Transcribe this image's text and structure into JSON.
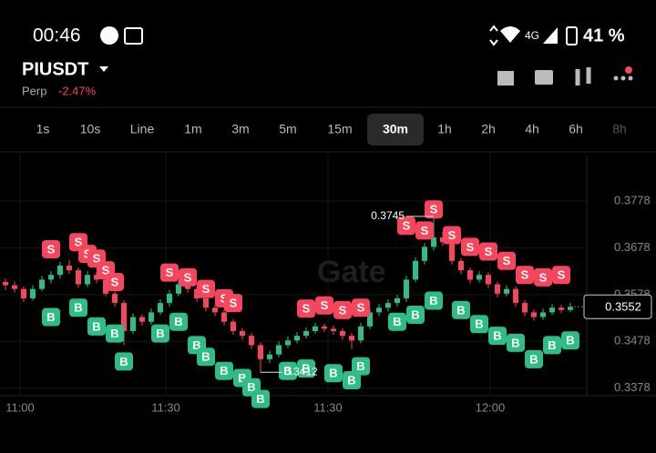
{
  "status_bar": {
    "time": "00:46",
    "network": "4G",
    "battery": "41 %"
  },
  "header": {
    "symbol": "PIUSDT",
    "product": "Perp",
    "change": "-2.47%"
  },
  "tabs": {
    "items": [
      "1s",
      "10s",
      "Line",
      "1m",
      "3m",
      "5m",
      "15m",
      "30m",
      "1h",
      "2h",
      "4h",
      "6h",
      "8h"
    ],
    "selected_index": 7
  },
  "watermark": "Gate",
  "chart_data": {
    "type": "candlestick",
    "xlim": [
      -0.6,
      63.8
    ],
    "ylim": [
      0.3362,
      0.3877
    ],
    "yticks": [
      0.3778,
      0.3678,
      0.3578,
      0.3478,
      0.3378
    ],
    "xticks": [
      {
        "value": 1.6,
        "label": "11:00"
      },
      {
        "value": 17.6,
        "label": "11:30"
      },
      {
        "value": 35.4,
        "label": "11:30"
      },
      {
        "value": 53.2,
        "label": "12:00"
      }
    ],
    "up_color": "#2ebd85",
    "down_color": "#f6465d",
    "candles": [
      [
        0.3605,
        0.3612,
        0.3588,
        0.3598
      ],
      [
        0.3598,
        0.3606,
        0.3582,
        0.359
      ],
      [
        0.359,
        0.3596,
        0.3562,
        0.357
      ],
      [
        0.357,
        0.3598,
        0.3565,
        0.359
      ],
      [
        0.359,
        0.3618,
        0.3585,
        0.361
      ],
      [
        0.361,
        0.3628,
        0.3602,
        0.362
      ],
      [
        0.362,
        0.3648,
        0.3612,
        0.364
      ],
      [
        0.364,
        0.3652,
        0.3622,
        0.363
      ],
      [
        0.363,
        0.3636,
        0.3592,
        0.36
      ],
      [
        0.36,
        0.3628,
        0.3594,
        0.362
      ],
      [
        0.362,
        0.3626,
        0.3602,
        0.361
      ],
      [
        0.361,
        0.3616,
        0.3574,
        0.358
      ],
      [
        0.358,
        0.3588,
        0.3552,
        0.356
      ],
      [
        0.356,
        0.3566,
        0.347,
        0.35
      ],
      [
        0.35,
        0.3538,
        0.3494,
        0.353
      ],
      [
        0.353,
        0.3536,
        0.3512,
        0.352
      ],
      [
        0.352,
        0.3548,
        0.3514,
        0.354
      ],
      [
        0.354,
        0.3568,
        0.3534,
        0.356
      ],
      [
        0.356,
        0.3588,
        0.3552,
        0.358
      ],
      [
        0.358,
        0.3608,
        0.3574,
        0.36
      ],
      [
        0.36,
        0.3606,
        0.3582,
        0.359
      ],
      [
        0.359,
        0.3596,
        0.3562,
        0.357
      ],
      [
        0.357,
        0.3578,
        0.3542,
        0.355
      ],
      [
        0.355,
        0.3556,
        0.3532,
        0.354
      ],
      [
        0.354,
        0.3546,
        0.3512,
        0.352
      ],
      [
        0.352,
        0.3526,
        0.3492,
        0.35
      ],
      [
        0.35,
        0.3506,
        0.3482,
        0.349
      ],
      [
        0.349,
        0.3496,
        0.3462,
        0.347
      ],
      [
        0.347,
        0.3476,
        0.3412,
        0.344
      ],
      [
        0.344,
        0.3458,
        0.3432,
        0.345
      ],
      [
        0.345,
        0.3478,
        0.3444,
        0.347
      ],
      [
        0.347,
        0.3488,
        0.3464,
        0.348
      ],
      [
        0.348,
        0.3498,
        0.3474,
        0.349
      ],
      [
        0.349,
        0.3508,
        0.3484,
        0.35
      ],
      [
        0.35,
        0.3518,
        0.3494,
        0.351
      ],
      [
        0.351,
        0.3516,
        0.3498,
        0.3505
      ],
      [
        0.3505,
        0.3512,
        0.3492,
        0.35
      ],
      [
        0.35,
        0.3506,
        0.3482,
        0.349
      ],
      [
        0.349,
        0.3496,
        0.3462,
        0.348
      ],
      [
        0.348,
        0.3518,
        0.3474,
        0.351
      ],
      [
        0.351,
        0.3548,
        0.3504,
        0.354
      ],
      [
        0.354,
        0.3558,
        0.3532,
        0.355
      ],
      [
        0.355,
        0.3568,
        0.3542,
        0.356
      ],
      [
        0.356,
        0.3578,
        0.3552,
        0.357
      ],
      [
        0.357,
        0.3618,
        0.3562,
        0.361
      ],
      [
        0.361,
        0.3658,
        0.3604,
        0.365
      ],
      [
        0.365,
        0.3688,
        0.3642,
        0.368
      ],
      [
        0.368,
        0.3745,
        0.3672,
        0.37
      ],
      [
        0.37,
        0.3712,
        0.3682,
        0.369
      ],
      [
        0.369,
        0.3696,
        0.3642,
        0.365
      ],
      [
        0.365,
        0.3656,
        0.3622,
        0.363
      ],
      [
        0.363,
        0.3636,
        0.3602,
        0.361
      ],
      [
        0.361,
        0.3628,
        0.3604,
        0.362
      ],
      [
        0.362,
        0.3626,
        0.3592,
        0.36
      ],
      [
        0.36,
        0.3606,
        0.3572,
        0.358
      ],
      [
        0.358,
        0.3598,
        0.3574,
        0.359
      ],
      [
        0.359,
        0.3596,
        0.3552,
        0.356
      ],
      [
        0.356,
        0.3566,
        0.3532,
        0.354
      ],
      [
        0.354,
        0.3546,
        0.3522,
        0.353
      ],
      [
        0.353,
        0.3548,
        0.3524,
        0.354
      ],
      [
        0.354,
        0.3558,
        0.3534,
        0.355
      ],
      [
        0.355,
        0.3556,
        0.3538,
        0.3545
      ],
      [
        0.3545,
        0.356,
        0.354,
        0.3552
      ]
    ],
    "markers": [
      {
        "label": "S",
        "x": 5,
        "price": 0.3675
      },
      {
        "label": "S",
        "x": 8,
        "price": 0.369
      },
      {
        "label": "S",
        "x": 9,
        "price": 0.3665
      },
      {
        "label": "S",
        "x": 10,
        "price": 0.3655
      },
      {
        "label": "S",
        "x": 11,
        "price": 0.363
      },
      {
        "label": "S",
        "x": 12,
        "price": 0.3605
      },
      {
        "label": "S",
        "x": 18,
        "price": 0.3625
      },
      {
        "label": "S",
        "x": 20,
        "price": 0.3615
      },
      {
        "label": "S",
        "x": 22,
        "price": 0.359
      },
      {
        "label": "S",
        "x": 24,
        "price": 0.357
      },
      {
        "label": "S",
        "x": 25,
        "price": 0.356
      },
      {
        "label": "S",
        "x": 33,
        "price": 0.3548
      },
      {
        "label": "S",
        "x": 35,
        "price": 0.3555
      },
      {
        "label": "S",
        "x": 37,
        "price": 0.3545
      },
      {
        "label": "S",
        "x": 39,
        "price": 0.355
      },
      {
        "label": "S",
        "x": 44,
        "price": 0.3725
      },
      {
        "label": "S",
        "x": 46,
        "price": 0.3715
      },
      {
        "label": "S",
        "x": 47,
        "price": 0.376
      },
      {
        "label": "S",
        "x": 49,
        "price": 0.3705
      },
      {
        "label": "S",
        "x": 51,
        "price": 0.368
      },
      {
        "label": "S",
        "x": 53,
        "price": 0.367
      },
      {
        "label": "S",
        "x": 55,
        "price": 0.365
      },
      {
        "label": "S",
        "x": 57,
        "price": 0.362
      },
      {
        "label": "S",
        "x": 59,
        "price": 0.3615
      },
      {
        "label": "S",
        "x": 61,
        "price": 0.362
      },
      {
        "label": "B",
        "x": 5,
        "price": 0.353
      },
      {
        "label": "B",
        "x": 8,
        "price": 0.355
      },
      {
        "label": "B",
        "x": 10,
        "price": 0.351
      },
      {
        "label": "B",
        "x": 12,
        "price": 0.3495
      },
      {
        "label": "B",
        "x": 13,
        "price": 0.3435
      },
      {
        "label": "B",
        "x": 17,
        "price": 0.3495
      },
      {
        "label": "B",
        "x": 19,
        "price": 0.352
      },
      {
        "label": "B",
        "x": 21,
        "price": 0.347
      },
      {
        "label": "B",
        "x": 22,
        "price": 0.3445
      },
      {
        "label": "B",
        "x": 24,
        "price": 0.3415
      },
      {
        "label": "B",
        "x": 26,
        "price": 0.34
      },
      {
        "label": "B",
        "x": 27,
        "price": 0.338
      },
      {
        "label": "B",
        "x": 28,
        "price": 0.3355
      },
      {
        "label": "B",
        "x": 31,
        "price": 0.3415
      },
      {
        "label": "B",
        "x": 33,
        "price": 0.342
      },
      {
        "label": "B",
        "x": 36,
        "price": 0.341
      },
      {
        "label": "B",
        "x": 38,
        "price": 0.3395
      },
      {
        "label": "B",
        "x": 39,
        "price": 0.3425
      },
      {
        "label": "B",
        "x": 43,
        "price": 0.352
      },
      {
        "label": "B",
        "x": 45,
        "price": 0.3535
      },
      {
        "label": "B",
        "x": 47,
        "price": 0.3565
      },
      {
        "label": "B",
        "x": 50,
        "price": 0.3545
      },
      {
        "label": "B",
        "x": 52,
        "price": 0.3515
      },
      {
        "label": "B",
        "x": 54,
        "price": 0.349
      },
      {
        "label": "B",
        "x": 56,
        "price": 0.3475
      },
      {
        "label": "B",
        "x": 58,
        "price": 0.344
      },
      {
        "label": "B",
        "x": 60,
        "price": 0.347
      },
      {
        "label": "B",
        "x": 62,
        "price": 0.348
      }
    ],
    "high_label": 0.3745,
    "low_label": 0.3412,
    "last_price": 0.3552
  }
}
